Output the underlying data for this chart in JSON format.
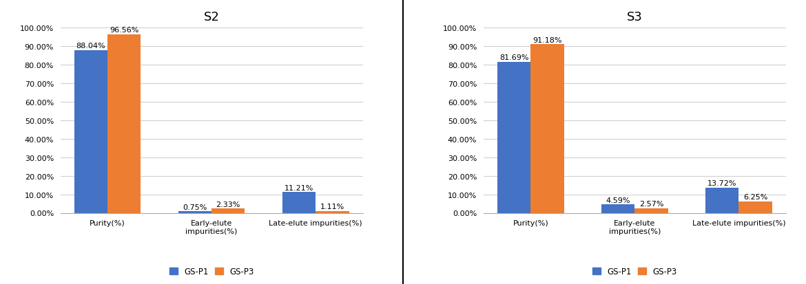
{
  "charts": [
    {
      "title": "S2",
      "categories": [
        "Purity(%)",
        "Early-elute\nimpurities(%)",
        "Late-elute impurities(%)"
      ],
      "gsp1_values": [
        88.04,
        0.75,
        11.21
      ],
      "gsp3_values": [
        96.56,
        2.33,
        1.11
      ],
      "gsp1_labels": [
        "88.04%",
        "0.75%",
        "11.21%"
      ],
      "gsp3_labels": [
        "96.56%",
        "2.33%",
        "1.11%"
      ]
    },
    {
      "title": "S3",
      "categories": [
        "Purity(%)",
        "Early-elute\nimpurities(%)",
        "Late-elute impurities(%)"
      ],
      "gsp1_values": [
        81.69,
        4.59,
        13.72
      ],
      "gsp3_values": [
        91.18,
        2.57,
        6.25
      ],
      "gsp1_labels": [
        "81.69%",
        "4.59%",
        "13.72%"
      ],
      "gsp3_labels": [
        "91.18%",
        "2.57%",
        "6.25%"
      ]
    }
  ],
  "color_gsp1": "#4472C4",
  "color_gsp3": "#ED7D31",
  "legend_labels": [
    "GS-P1",
    "GS-P3"
  ],
  "ylim": [
    0,
    100
  ],
  "yticks": [
    0,
    10,
    20,
    30,
    40,
    50,
    60,
    70,
    80,
    90,
    100
  ],
  "ytick_labels": [
    "0.00%",
    "10.00%",
    "20.00%",
    "30.00%",
    "40.00%",
    "50.00%",
    "60.00%",
    "70.00%",
    "80.00%",
    "90.00%",
    "100.00%"
  ],
  "bar_width": 0.32,
  "label_fontsize": 8,
  "tick_fontsize": 8,
  "title_fontsize": 13,
  "legend_fontsize": 8.5,
  "divider_color": "#000000",
  "background_color": "#ffffff",
  "grid_color": "#d0d0d0"
}
